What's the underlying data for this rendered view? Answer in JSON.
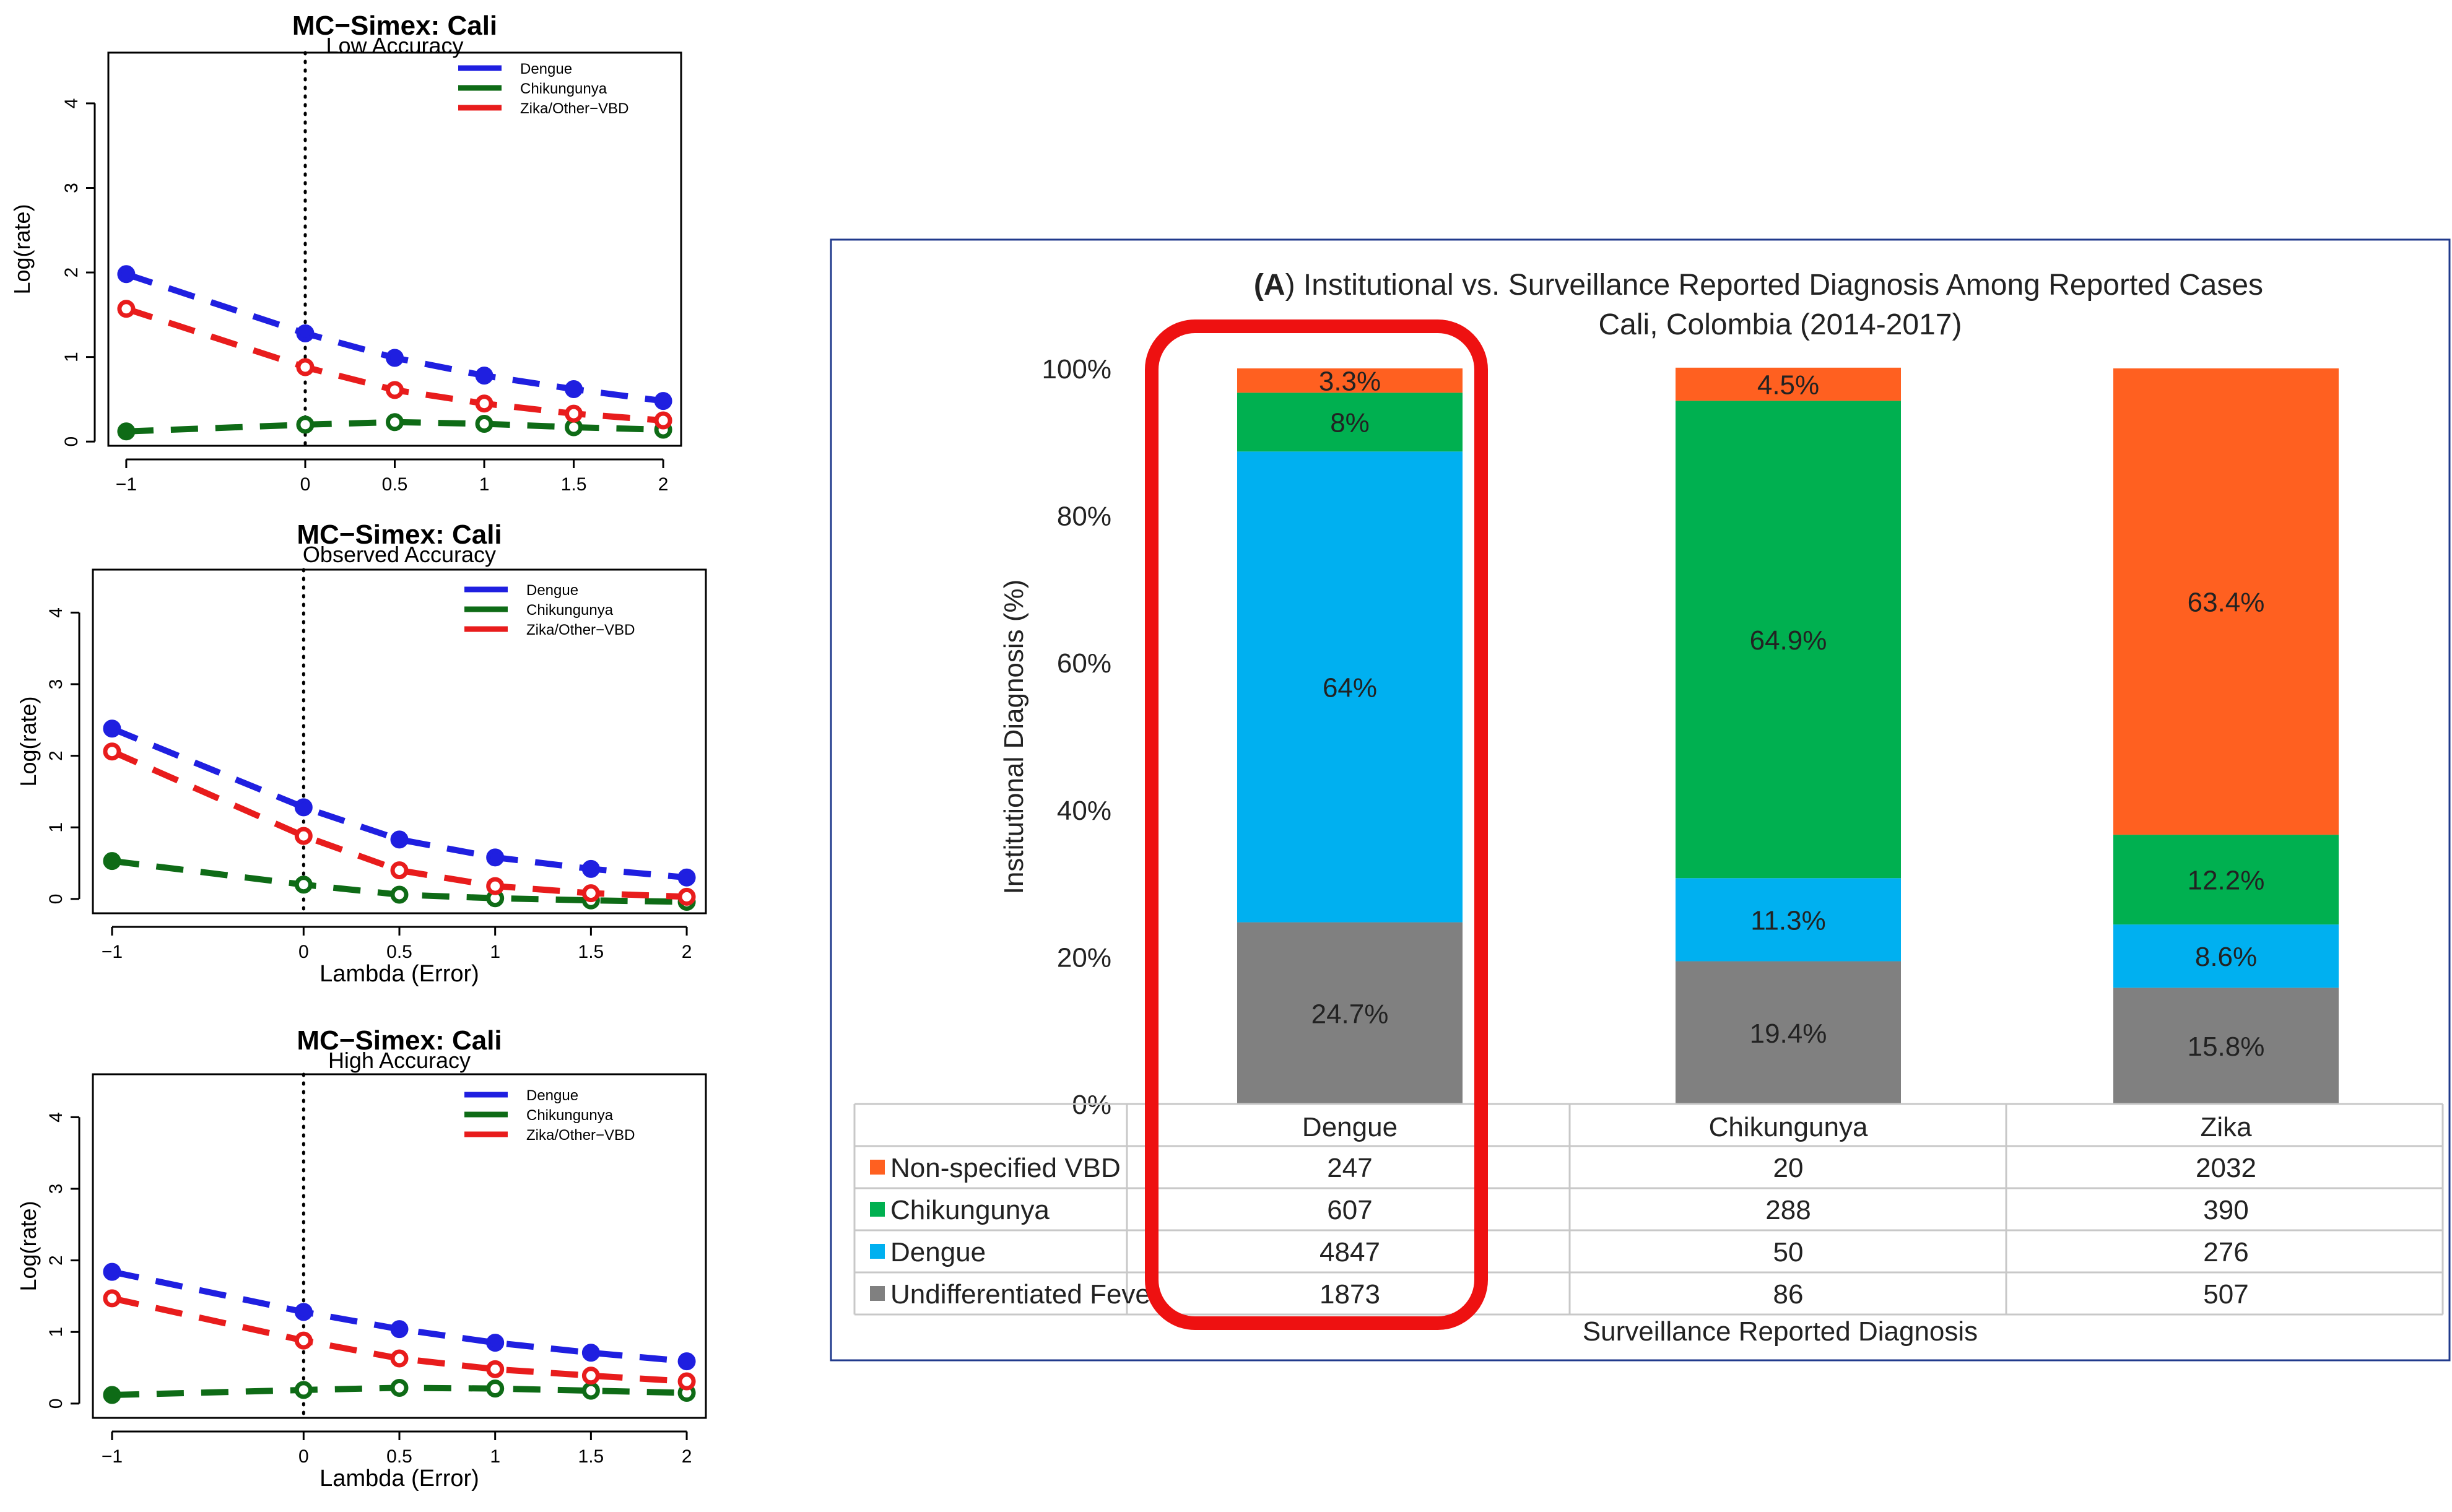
{
  "simex_common": {
    "title": "MC−Simex: Cali",
    "xlabel": "Lambda (Error)",
    "ylabel": "Log(rate)",
    "legend": [
      "Dengue",
      "Chikungunya",
      "Zika/Other−VBD"
    ],
    "x_ticks": [
      "−1",
      "0",
      "0.5",
      "1",
      "1.5",
      "2"
    ],
    "y_ticks": [
      "0",
      "1",
      "2",
      "3",
      "4"
    ]
  },
  "chart_data": [
    {
      "type": "line",
      "title": "MC−Simex: Cali",
      "subtitle": "Low Accuracy",
      "xlabel": "Lambda (Error)",
      "ylabel": "Log(rate)",
      "xlim": [
        -1.1,
        2.1
      ],
      "ylim": [
        -0.05,
        4.6
      ],
      "x": [
        -1,
        0,
        0.5,
        1,
        1.5,
        2
      ],
      "series": [
        {
          "name": "Dengue",
          "color": "#1f1fe0",
          "values": [
            1.98,
            1.28,
            0.99,
            0.78,
            0.62,
            0.48
          ]
        },
        {
          "name": "Chikungunya",
          "color": "#0e6b16",
          "values": [
            0.12,
            0.2,
            0.23,
            0.21,
            0.17,
            0.14
          ]
        },
        {
          "name": "Zika/Other−VBD",
          "color": "#e81c1c",
          "values": [
            1.57,
            0.88,
            0.61,
            0.45,
            0.33,
            0.25
          ]
        }
      ]
    },
    {
      "type": "line",
      "title": "MC−Simex: Cali",
      "subtitle": "Observed Accuracy",
      "xlabel": "Lambda (Error)",
      "ylabel": "Log(rate)",
      "xlim": [
        -1.1,
        2.1
      ],
      "ylim": [
        -0.2,
        4.6
      ],
      "x": [
        -1,
        0,
        0.5,
        1,
        1.5,
        2
      ],
      "series": [
        {
          "name": "Dengue",
          "color": "#1f1fe0",
          "values": [
            2.38,
            1.28,
            0.83,
            0.58,
            0.42,
            0.3
          ]
        },
        {
          "name": "Chikungunya",
          "color": "#0e6b16",
          "values": [
            0.53,
            0.2,
            0.06,
            0.01,
            -0.02,
            -0.04
          ]
        },
        {
          "name": "Zika/Other−VBD",
          "color": "#e81c1c",
          "values": [
            2.06,
            0.88,
            0.4,
            0.18,
            0.08,
            0.03
          ]
        }
      ]
    },
    {
      "type": "line",
      "title": "MC−Simex: Cali",
      "subtitle": "High Accuracy",
      "xlabel": "Lambda (Error)",
      "ylabel": "Log(rate)",
      "xlim": [
        -1.1,
        2.1
      ],
      "ylim": [
        -0.2,
        4.6
      ],
      "x": [
        -1,
        0,
        0.5,
        1,
        1.5,
        2
      ],
      "series": [
        {
          "name": "Dengue",
          "color": "#1f1fe0",
          "values": [
            1.84,
            1.28,
            1.04,
            0.85,
            0.71,
            0.59
          ]
        },
        {
          "name": "Chikungunya",
          "color": "#0e6b16",
          "values": [
            0.12,
            0.19,
            0.22,
            0.21,
            0.18,
            0.15
          ]
        },
        {
          "name": "Zika/Other−VBD",
          "color": "#e81c1c",
          "values": [
            1.47,
            0.88,
            0.63,
            0.48,
            0.39,
            0.31
          ]
        }
      ]
    },
    {
      "type": "bar",
      "stacked": true,
      "title_bold": "(A",
      "title_rest": ") Institutional vs. Surveillance Reported Diagnosis Among Reported Cases",
      "title_line2": "Cali, Colombia (2014-2017)",
      "ylabel": "Institutional Diagnosis (%)",
      "xlabel": "Surveillance Reported Diagnosis",
      "y_ticks": [
        "0%",
        "20%",
        "40%",
        "60%",
        "80%",
        "100%"
      ],
      "categories": [
        "Dengue",
        "Chikungunya",
        "Zika"
      ],
      "series": [
        {
          "name": "Undifferentiated Fever",
          "color": "#808080",
          "percent": [
            24.7,
            19.4,
            15.8
          ],
          "labels": [
            "24.7%",
            "19.4%",
            "15.8%"
          ],
          "counts": [
            "1873",
            "86",
            "507"
          ]
        },
        {
          "name": "Dengue",
          "color": "#00b0f0",
          "percent": [
            64,
            11.3,
            8.6
          ],
          "labels": [
            "64%",
            "11.3%",
            "8.6%"
          ],
          "counts": [
            "4847",
            "50",
            "276"
          ]
        },
        {
          "name": "Chikungunya",
          "color": "#00b050",
          "percent": [
            8,
            64.9,
            12.2
          ],
          "labels": [
            "8%",
            "64.9%",
            "12.2%"
          ],
          "counts": [
            "607",
            "288",
            "390"
          ]
        },
        {
          "name": "Non-specified VBD",
          "color": "#ff6020",
          "percent": [
            3.3,
            4.5,
            63.4
          ],
          "labels": [
            "3.3%",
            "4.5%",
            "63.4%"
          ],
          "counts": [
            "247",
            "20",
            "2032"
          ]
        }
      ],
      "highlight": {
        "category": "Dengue",
        "color": "#ee1111"
      }
    }
  ]
}
